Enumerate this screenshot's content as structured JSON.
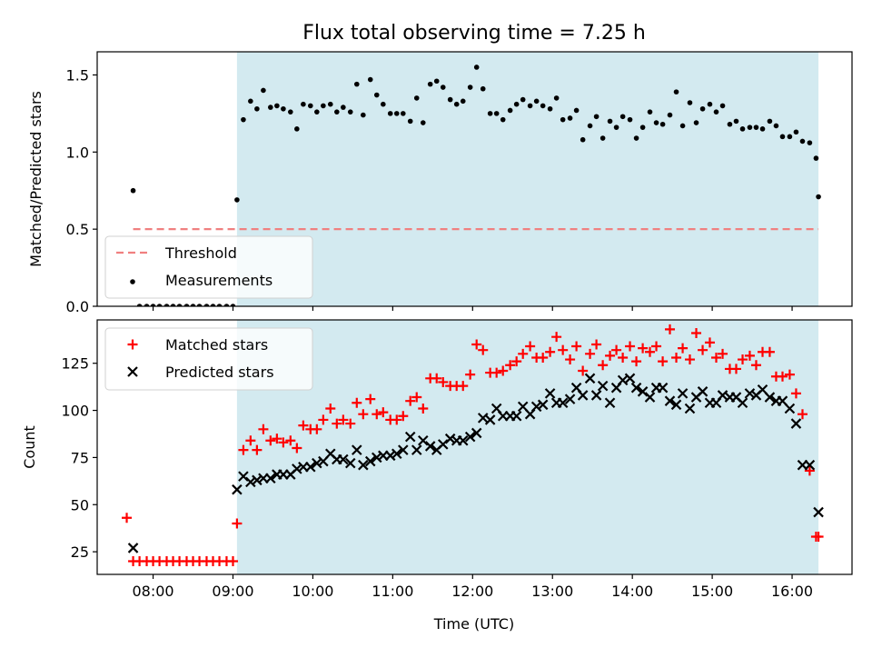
{
  "chart_data": [
    {
      "panel": "top",
      "type": "scatter",
      "title": "Flux total observing time = 7.25 h",
      "xlabel": "",
      "ylabel": "Matched/Predicted stars",
      "x_unit": "UTC time (decimal hours)",
      "xlim": [
        7.3,
        16.75
      ],
      "ylim": [
        0,
        1.65
      ],
      "yticks": [
        0.0,
        0.5,
        1.0,
        1.5
      ],
      "ytick_labels": [
        "0.0",
        "0.5",
        "1.0",
        "1.5"
      ],
      "grid": false,
      "legend_position": "lower left",
      "shaded_region": {
        "x_start": 9.05,
        "x_end": 16.33,
        "color": "#d3eaf0"
      },
      "threshold": {
        "name": "Threshold",
        "y": 0.5,
        "x_start": 7.75,
        "x_end": 16.33,
        "color": "#f08080",
        "style": "dashed"
      },
      "series": [
        {
          "name": "Measurements",
          "color": "#000000",
          "marker": "dot",
          "x": [
            7.75,
            7.83,
            7.92,
            8.0,
            8.08,
            8.17,
            8.25,
            8.33,
            8.42,
            8.5,
            8.58,
            8.67,
            8.75,
            8.83,
            8.92,
            9.0,
            9.05,
            9.13,
            9.22,
            9.3,
            9.38,
            9.47,
            9.55,
            9.63,
            9.72,
            9.8,
            9.88,
            9.97,
            10.05,
            10.13,
            10.22,
            10.3,
            10.38,
            10.47,
            10.55,
            10.63,
            10.72,
            10.8,
            10.88,
            10.97,
            11.05,
            11.13,
            11.22,
            11.3,
            11.38,
            11.47,
            11.55,
            11.63,
            11.72,
            11.8,
            11.88,
            11.97,
            12.05,
            12.13,
            12.22,
            12.3,
            12.38,
            12.47,
            12.55,
            12.63,
            12.72,
            12.8,
            12.88,
            12.97,
            13.05,
            13.13,
            13.22,
            13.3,
            13.38,
            13.47,
            13.55,
            13.63,
            13.72,
            13.8,
            13.88,
            13.97,
            14.05,
            14.13,
            14.22,
            14.3,
            14.38,
            14.47,
            14.55,
            14.63,
            14.72,
            14.8,
            14.88,
            14.97,
            15.05,
            15.13,
            15.22,
            15.3,
            15.38,
            15.47,
            15.55,
            15.63,
            15.72,
            15.8,
            15.88,
            15.97,
            16.05,
            16.13,
            16.22,
            16.3
          ],
          "y": [
            0.75,
            0.0,
            0.0,
            0.0,
            0.0,
            0.0,
            0.0,
            0.0,
            0.0,
            0.0,
            0.0,
            0.0,
            0.0,
            0.0,
            0.0,
            0.0,
            0.69,
            1.21,
            1.33,
            1.28,
            1.4,
            1.29,
            1.3,
            1.28,
            1.26,
            1.15,
            1.31,
            1.3,
            1.26,
            1.3,
            1.31,
            1.26,
            1.29,
            1.26,
            1.44,
            1.24,
            1.47,
            1.37,
            1.31,
            1.25,
            1.25,
            1.25,
            1.2,
            1.35,
            1.19,
            1.44,
            1.46,
            1.42,
            1.34,
            1.31,
            1.33,
            1.42,
            1.55,
            1.41,
            1.25,
            1.25,
            1.21,
            1.27,
            1.31,
            1.34,
            1.3,
            1.33,
            1.3,
            1.28,
            1.35,
            1.21,
            1.22,
            1.27,
            1.08,
            1.17,
            1.23,
            1.09,
            1.2,
            1.16,
            1.23,
            1.21,
            1.09,
            1.16,
            1.26,
            1.19,
            1.18,
            1.24,
            1.39,
            1.17,
            1.32,
            1.19,
            1.28,
            1.31,
            1.26,
            1.3,
            1.18,
            1.2,
            1.15,
            1.16,
            1.16,
            1.15,
            1.2,
            1.17,
            1.1,
            1.1,
            1.13,
            1.07,
            1.06,
            0.96
          ]
        }
      ],
      "extra_point": {
        "x": 16.33,
        "y": 0.71
      },
      "legend": [
        "Threshold",
        "Measurements"
      ]
    },
    {
      "panel": "bottom",
      "type": "scatter",
      "xlabel": "Time (UTC)",
      "ylabel": "Count",
      "x_unit": "UTC time (decimal hours)",
      "xlim": [
        7.3,
        16.75
      ],
      "ylim": [
        13,
        148
      ],
      "xticks": [
        8,
        9,
        10,
        11,
        12,
        13,
        14,
        15,
        16
      ],
      "xtick_labels": [
        "08:00",
        "09:00",
        "10:00",
        "11:00",
        "12:00",
        "13:00",
        "14:00",
        "15:00",
        "16:00"
      ],
      "yticks": [
        25,
        50,
        75,
        100,
        125
      ],
      "ytick_labels": [
        "25",
        "50",
        "75",
        "100",
        "125"
      ],
      "grid": false,
      "legend_position": "upper left",
      "shaded_region": {
        "x_start": 9.05,
        "x_end": 16.33,
        "color": "#d3eaf0"
      },
      "series": [
        {
          "name": "Matched stars",
          "color": "#ff0000",
          "marker": "plus",
          "x": [
            7.67,
            7.75,
            7.83,
            7.92,
            8.0,
            8.08,
            8.17,
            8.25,
            8.33,
            8.42,
            8.5,
            8.58,
            8.67,
            8.75,
            8.83,
            8.92,
            9.0,
            9.05,
            9.13,
            9.22,
            9.3,
            9.38,
            9.47,
            9.55,
            9.63,
            9.72,
            9.8,
            9.88,
            9.97,
            10.05,
            10.13,
            10.22,
            10.3,
            10.38,
            10.47,
            10.55,
            10.63,
            10.72,
            10.8,
            10.88,
            10.97,
            11.05,
            11.13,
            11.22,
            11.3,
            11.38,
            11.47,
            11.55,
            11.63,
            11.72,
            11.8,
            11.88,
            11.97,
            12.05,
            12.13,
            12.22,
            12.3,
            12.38,
            12.47,
            12.55,
            12.63,
            12.72,
            12.8,
            12.88,
            12.97,
            13.05,
            13.13,
            13.22,
            13.3,
            13.38,
            13.47,
            13.55,
            13.63,
            13.72,
            13.8,
            13.88,
            13.97,
            14.05,
            14.13,
            14.22,
            14.3,
            14.38,
            14.47,
            14.55,
            14.63,
            14.72,
            14.8,
            14.88,
            14.97,
            15.05,
            15.13,
            15.22,
            15.3,
            15.38,
            15.47,
            15.55,
            15.63,
            15.72,
            15.8,
            15.88,
            15.97,
            16.05,
            16.13,
            16.22,
            16.3,
            16.33
          ],
          "y": [
            43,
            20,
            20,
            20,
            20,
            20,
            20,
            20,
            20,
            20,
            20,
            20,
            20,
            20,
            20,
            20,
            20,
            40,
            79,
            84,
            79,
            90,
            84,
            85,
            83,
            84,
            80,
            92,
            90,
            90,
            95,
            101,
            93,
            95,
            93,
            104,
            98,
            106,
            98,
            99,
            95,
            95,
            97,
            105,
            107,
            101,
            117,
            117,
            115,
            113,
            113,
            113,
            119,
            135,
            132,
            120,
            120,
            121,
            124,
            126,
            130,
            134,
            128,
            128,
            131,
            139,
            132,
            127,
            134,
            121,
            130,
            135,
            124,
            129,
            132,
            128,
            134,
            126,
            133,
            131,
            134,
            126,
            143,
            128,
            133,
            127,
            141,
            132,
            136,
            128,
            130,
            122,
            122,
            127,
            129,
            124,
            131,
            131,
            118,
            118,
            119,
            109,
            98,
            68,
            33,
            33
          ],
          "notes": "Matched stars series"
        },
        {
          "name": "Predicted stars",
          "color": "#000000",
          "marker": "cross",
          "x": [
            7.75,
            9.05,
            9.13,
            9.22,
            9.3,
            9.38,
            9.47,
            9.55,
            9.63,
            9.72,
            9.8,
            9.88,
            9.97,
            10.05,
            10.13,
            10.22,
            10.3,
            10.38,
            10.47,
            10.55,
            10.63,
            10.72,
            10.8,
            10.88,
            10.97,
            11.05,
            11.13,
            11.22,
            11.3,
            11.38,
            11.47,
            11.55,
            11.63,
            11.72,
            11.8,
            11.88,
            11.97,
            12.05,
            12.13,
            12.22,
            12.3,
            12.38,
            12.47,
            12.55,
            12.63,
            12.72,
            12.8,
            12.88,
            12.97,
            13.05,
            13.13,
            13.22,
            13.3,
            13.38,
            13.47,
            13.55,
            13.63,
            13.72,
            13.8,
            13.88,
            13.97,
            14.05,
            14.13,
            14.22,
            14.3,
            14.38,
            14.47,
            14.55,
            14.63,
            14.72,
            14.8,
            14.88,
            14.97,
            15.05,
            15.13,
            15.22,
            15.3,
            15.38,
            15.47,
            15.55,
            15.63,
            15.72,
            15.8,
            15.88,
            15.97,
            16.05,
            16.13,
            16.22,
            16.33
          ],
          "y": [
            27,
            58,
            65,
            62,
            63,
            64,
            64,
            66,
            66,
            66,
            69,
            70,
            70,
            72,
            73,
            77,
            74,
            74,
            72,
            79,
            71,
            73,
            75,
            76,
            76,
            77,
            79,
            86,
            79,
            84,
            81,
            79,
            82,
            85,
            84,
            84,
            86,
            88,
            96,
            95,
            101,
            97,
            97,
            97,
            102,
            98,
            102,
            103,
            109,
            104,
            104,
            106,
            112,
            108,
            117,
            108,
            113,
            104,
            112,
            116,
            117,
            112,
            110,
            107,
            112,
            112,
            105,
            103,
            109,
            101,
            107,
            110,
            104,
            104,
            108,
            107,
            107,
            104,
            109,
            108,
            111,
            107,
            105,
            105,
            101,
            93,
            71,
            71,
            46
          ]
        }
      ],
      "legend": [
        "Matched stars",
        "Predicted stars"
      ]
    }
  ]
}
